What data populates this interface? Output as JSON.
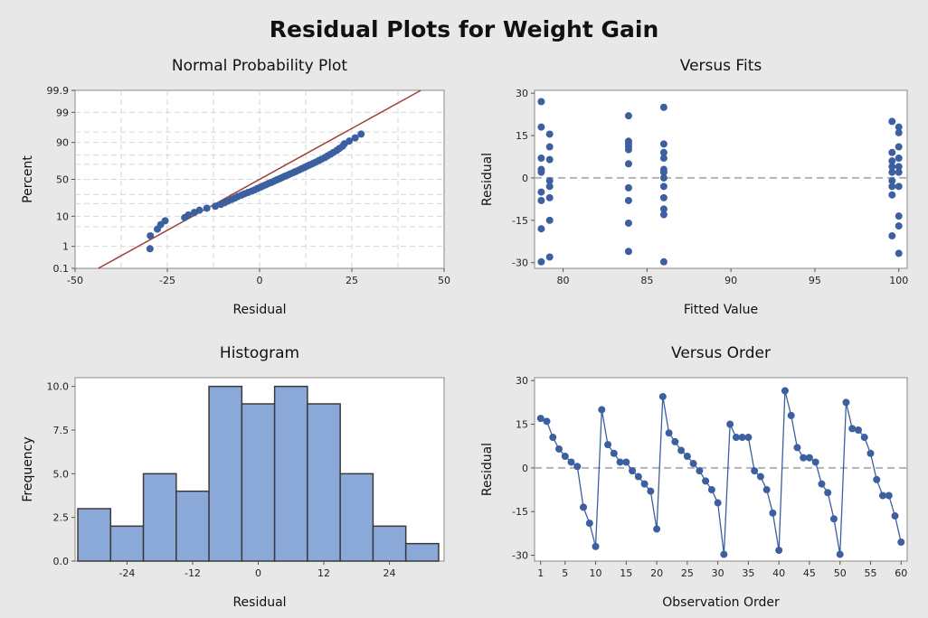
{
  "title": "Residual Plots for Weight Gain",
  "colors": {
    "marker": "#3c5fa0",
    "fit_line": "#a0403a",
    "bar_fill": "#8aa8d8",
    "bar_edge": "#3a3a3a",
    "grid": "#d6d6d6",
    "zero_line": "#b4b4b4",
    "panel_bg": "#e8e8e8",
    "plot_bg": "#ffffff"
  },
  "chart_data": [
    {
      "type": "scatter",
      "title": "Normal Probability Plot",
      "xlabel": "Residual",
      "ylabel": "Percent",
      "xlim": [
        -50,
        50
      ],
      "x_ticks": [
        -50,
        -25,
        0,
        25,
        50
      ],
      "y_scale": "normal-probability",
      "y_ticks": [
        0.1,
        1,
        10,
        50,
        90,
        99,
        99.9
      ],
      "y_tick_labels": [
        "0.1",
        "1",
        "10",
        "50",
        "90",
        "99",
        "99.9"
      ],
      "grid": true,
      "fit_line": {
        "points": [
          [
            -43.7,
            0.1
          ],
          [
            43.7,
            99.9
          ]
        ]
      },
      "points": [
        [
          -29.7,
          0.8
        ],
        [
          -29.6,
          2.5
        ],
        [
          -27.7,
          4.2
        ],
        [
          -26.8,
          5.8
        ],
        [
          -25.6,
          7.5
        ],
        [
          -20.3,
          9.2
        ],
        [
          -19.3,
          10.8
        ],
        [
          -17.7,
          12.5
        ],
        [
          -16.3,
          14.2
        ],
        [
          -14.3,
          15.8
        ],
        [
          -12.0,
          17.5
        ],
        [
          -10.5,
          19.2
        ],
        [
          -9.5,
          20.8
        ],
        [
          -8.6,
          22.5
        ],
        [
          -7.6,
          24.2
        ],
        [
          -6.7,
          25.8
        ],
        [
          -5.9,
          27.5
        ],
        [
          -4.9,
          29.2
        ],
        [
          -4.1,
          30.8
        ],
        [
          -3.1,
          32.5
        ],
        [
          -2.1,
          34.2
        ],
        [
          -1.3,
          35.8
        ],
        [
          -0.6,
          37.5
        ],
        [
          0.2,
          39.2
        ],
        [
          0.9,
          40.8
        ],
        [
          1.7,
          42.5
        ],
        [
          2.4,
          44.2
        ],
        [
          3.2,
          45.8
        ],
        [
          3.9,
          47.5
        ],
        [
          4.6,
          49.2
        ],
        [
          5.4,
          50.8
        ],
        [
          6.1,
          52.5
        ],
        [
          6.8,
          54.2
        ],
        [
          7.6,
          55.8
        ],
        [
          8.3,
          57.5
        ],
        [
          9.1,
          59.2
        ],
        [
          9.8,
          60.8
        ],
        [
          10.6,
          62.5
        ],
        [
          11.3,
          64.2
        ],
        [
          12.1,
          65.8
        ],
        [
          12.8,
          67.5
        ],
        [
          13.6,
          69.2
        ],
        [
          14.4,
          70.8
        ],
        [
          15.2,
          72.5
        ],
        [
          16.0,
          74.2
        ],
        [
          16.8,
          75.8
        ],
        [
          17.7,
          77.5
        ],
        [
          18.4,
          79.2
        ],
        [
          19.2,
          80.8
        ],
        [
          20.0,
          82.5
        ],
        [
          20.9,
          84.2
        ],
        [
          21.6,
          85.8
        ],
        [
          22.5,
          87.5
        ],
        [
          23.0,
          89.2
        ],
        [
          24.3,
          90.8
        ],
        [
          25.9,
          92.5
        ],
        [
          27.5,
          94.2
        ]
      ]
    },
    {
      "type": "scatter",
      "title": "Versus Fits",
      "xlabel": "Fitted Value",
      "ylabel": "Residual",
      "xlim": [
        78.3,
        100.5
      ],
      "ylim": [
        -32,
        31
      ],
      "x_ticks": [
        80,
        85,
        90,
        95,
        100
      ],
      "y_ticks": [
        -30,
        -15,
        0,
        15,
        30
      ],
      "reference_line": 0,
      "points": [
        [
          78.7,
          27
        ],
        [
          78.7,
          18
        ],
        [
          78.7,
          7
        ],
        [
          78.7,
          3
        ],
        [
          78.7,
          2
        ],
        [
          78.7,
          -5
        ],
        [
          78.7,
          -8
        ],
        [
          78.7,
          -18
        ],
        [
          78.7,
          -29.7
        ],
        [
          79.2,
          15.5
        ],
        [
          79.2,
          11
        ],
        [
          79.2,
          6.5
        ],
        [
          79.2,
          -1
        ],
        [
          79.2,
          -3
        ],
        [
          79.2,
          -7
        ],
        [
          79.2,
          -15
        ],
        [
          79.2,
          -28
        ],
        [
          83.9,
          22
        ],
        [
          83.9,
          13
        ],
        [
          83.9,
          12
        ],
        [
          83.9,
          11
        ],
        [
          83.9,
          10
        ],
        [
          83.9,
          5
        ],
        [
          83.9,
          -3.5
        ],
        [
          83.9,
          -8
        ],
        [
          83.9,
          -16
        ],
        [
          83.9,
          -26
        ],
        [
          86.0,
          25
        ],
        [
          86.0,
          12
        ],
        [
          86.0,
          9
        ],
        [
          86.0,
          7
        ],
        [
          86.0,
          3
        ],
        [
          86.0,
          2
        ],
        [
          86.0,
          0
        ],
        [
          86.0,
          -3
        ],
        [
          86.0,
          -7
        ],
        [
          86.0,
          -11
        ],
        [
          86.0,
          -13
        ],
        [
          86.0,
          -29.7
        ],
        [
          99.6,
          20
        ],
        [
          99.6,
          9
        ],
        [
          99.6,
          6
        ],
        [
          99.6,
          4
        ],
        [
          99.6,
          2
        ],
        [
          99.6,
          -1
        ],
        [
          99.6,
          -3
        ],
        [
          99.6,
          -6
        ],
        [
          99.6,
          -20.5
        ],
        [
          100.0,
          18
        ],
        [
          100.0,
          16
        ],
        [
          100.0,
          11
        ],
        [
          100.0,
          7
        ],
        [
          100.0,
          4
        ],
        [
          100.0,
          2
        ],
        [
          100.0,
          -3
        ],
        [
          100.0,
          -13.5
        ],
        [
          100.0,
          -17
        ],
        [
          100.0,
          -26.7
        ]
      ]
    },
    {
      "type": "bar",
      "title": "Histogram",
      "xlabel": "Residual",
      "ylabel": "Frequency",
      "bin_width": 6,
      "bin_centers": [
        -30,
        -24,
        -18,
        -12,
        -6,
        0,
        6,
        12,
        18,
        24,
        30
      ],
      "values": [
        3,
        2,
        5,
        4,
        10,
        9,
        10,
        9,
        5,
        2,
        1
      ],
      "xlim": [
        -33.5,
        34
      ],
      "ylim": [
        0,
        10.5
      ],
      "x_ticks": [
        -24,
        -12,
        0,
        12,
        24
      ],
      "y_ticks": [
        0,
        2.5,
        5,
        7.5,
        10
      ],
      "y_tick_labels": [
        "0.0",
        "2.5",
        "5.0",
        "7.5",
        "10.0"
      ]
    },
    {
      "type": "line",
      "title": "Versus Order",
      "xlabel": "Observation Order",
      "ylabel": "Residual",
      "xlim": [
        0,
        61
      ],
      "ylim": [
        -32,
        31
      ],
      "x_ticks": [
        1,
        5,
        10,
        15,
        20,
        25,
        30,
        35,
        40,
        45,
        50,
        55,
        60
      ],
      "y_ticks": [
        -30,
        -15,
        0,
        15,
        30
      ],
      "reference_line": 0,
      "x": [
        1,
        2,
        3,
        4,
        5,
        6,
        7,
        8,
        9,
        10,
        11,
        12,
        13,
        14,
        15,
        16,
        17,
        18,
        19,
        20,
        21,
        22,
        23,
        24,
        25,
        26,
        27,
        28,
        29,
        30,
        31,
        32,
        33,
        34,
        35,
        36,
        37,
        38,
        39,
        40,
        41,
        42,
        43,
        44,
        45,
        46,
        47,
        48,
        49,
        50,
        51,
        52,
        53,
        54,
        55,
        56,
        57,
        58,
        59,
        60
      ],
      "y": [
        17,
        16,
        10.5,
        6.5,
        4,
        2,
        0.5,
        -13.5,
        -19,
        -27,
        20,
        8,
        5,
        2,
        2,
        -1,
        -3,
        -5.5,
        -8,
        -21,
        24.5,
        12,
        9,
        6,
        4,
        1.5,
        -1,
        -4.5,
        -7.5,
        -12,
        -29.7,
        15,
        10.5,
        10.5,
        10.5,
        -1,
        -3,
        -7.5,
        -15.5,
        -28.3,
        26.5,
        18,
        7,
        3.5,
        3.5,
        2,
        -5.5,
        -8.5,
        -17.5,
        -29.7,
        22.5,
        13.5,
        13,
        10.5,
        5,
        -4,
        -9.5,
        -9.5,
        -16.5,
        -25.5
      ]
    }
  ]
}
